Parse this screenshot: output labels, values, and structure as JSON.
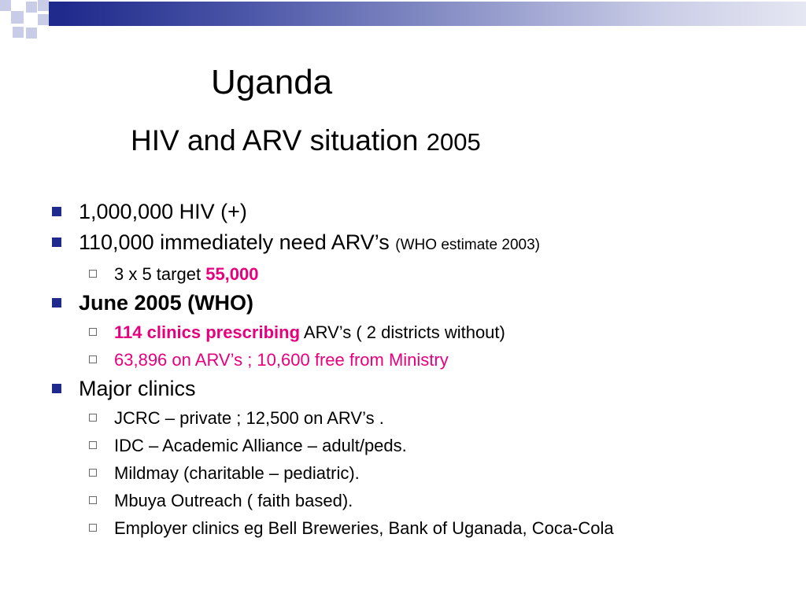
{
  "colors": {
    "accent_blue": "#1f2a8c",
    "highlight_pink": "#e6007e",
    "subbullet_border": "#6a6a6a"
  },
  "title": {
    "line1": "Uganda",
    "line2_main": "HIV and ARV situation",
    "line2_year": "2005"
  },
  "bullets": {
    "b1": "1,000,000 HIV (+)",
    "b2_main": "110,000 immediately need ARV’s",
    "b2_note": "(WHO estimate 2003)",
    "b2_sub1_prefix": "3 x 5 target",
    "b2_sub1_value": "55,000",
    "b3": "June 2005 (WHO)",
    "b3_sub1_highlight": "114 clinics prescribing",
    "b3_sub1_rest": "ARV’s ( 2 districts without)",
    "b3_sub2": "63,896 on ARV’s ; 10,600 free from Ministry",
    "b4": "Major clinics",
    "b4_subs": [
      "JCRC – private ; 12,500 on ARV’s .",
      "IDC – Academic Alliance – adult/peds.",
      "Mildmay (charitable – pediatric).",
      "Mbuya Outreach ( faith based).",
      "Employer clinics eg Bell Breweries, Bank of Uganada, Coca-Cola"
    ]
  }
}
